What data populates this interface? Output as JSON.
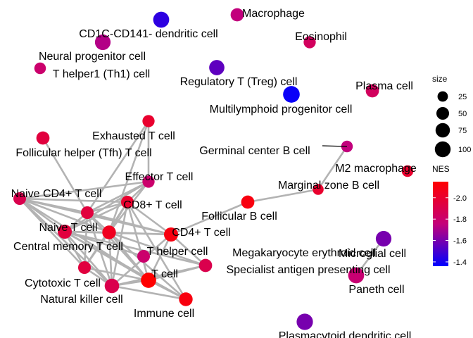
{
  "chart_data": {
    "type": "network",
    "description_source": "cell-type enrichment network (node size = gene set size, color = NES)",
    "nodes": [
      {
        "id": "Macrophage",
        "label": "Macrophage",
        "size": 40,
        "nes": -1.75
      },
      {
        "id": "DC",
        "label": "CD1C-CD141- dendritic cell",
        "size": 75,
        "nes": -1.45
      },
      {
        "id": "Eosinophil",
        "label": "Eosinophil",
        "size": 30,
        "nes": -1.85
      },
      {
        "id": "NeuralProg",
        "label": "Neural progenitor cell",
        "size": 70,
        "nes": -1.72
      },
      {
        "id": "Th1",
        "label": "T helper1 (Th1) cell",
        "size": 25,
        "nes": -1.8
      },
      {
        "id": "Treg",
        "label": "Regulatory T (Treg) cell",
        "size": 65,
        "nes": -1.55
      },
      {
        "id": "PlasmaCell",
        "label": "Plasma cell",
        "size": 40,
        "nes": -1.85
      },
      {
        "id": "MLP",
        "label": "Multilymphoid progenitor cell",
        "size": 85,
        "nes": -1.38
      },
      {
        "id": "Exhausted",
        "label": "Exhausted T cell",
        "size": 30,
        "nes": -2.0
      },
      {
        "id": "Tfh",
        "label": "Follicular helper (Tfh) T cell",
        "size": 40,
        "nes": -1.95
      },
      {
        "id": "GCB",
        "label": "Germinal center B cell",
        "size": 25,
        "nes": -1.75
      },
      {
        "id": "M2",
        "label": "M2 macrophage",
        "size": 25,
        "nes": -2.0
      },
      {
        "id": "Effector",
        "label": "Effector T cell",
        "size": 30,
        "nes": -1.8
      },
      {
        "id": "NaiveCD4",
        "label": "Naive CD4+ T cell",
        "size": 35,
        "nes": -1.9
      },
      {
        "id": "MZB",
        "label": "Marginal zone B cell",
        "size": 20,
        "nes": -2.0
      },
      {
        "id": "CD8",
        "label": "CD8+ T cell",
        "size": 35,
        "nes": -2.0
      },
      {
        "id": "FolB",
        "label": "Follicular B cell",
        "size": 40,
        "nes": -2.1
      },
      {
        "id": "NaiveT",
        "label": "Naive T cell",
        "size": 35,
        "nes": -1.95
      },
      {
        "id": "CD4",
        "label": "CD4+ T cell",
        "size": 50,
        "nes": -2.1
      },
      {
        "id": "CentralMem",
        "label": "Central memory T cell",
        "size": 45,
        "nes": -2.05
      },
      {
        "id": "Microglial",
        "label": "Microglial cell",
        "size": 70,
        "nes": -1.6
      },
      {
        "id": "Th",
        "label": "T helper cell",
        "size": 50,
        "nes": -1.95
      },
      {
        "id": "MegaEry",
        "label": "Megakaryocyte erythroid cell",
        "size": 35,
        "nes": -1.8
      },
      {
        "id": "SpecialistAPC",
        "label": "Specialist antigen presenting cell",
        "size": 40,
        "nes": -1.9
      },
      {
        "id": "Cytotoxic",
        "label": "Cytotoxic T cell",
        "size": 35,
        "nes": -1.95
      },
      {
        "id": "Tcell",
        "label": "T cell",
        "size": 65,
        "nes": -2.15
      },
      {
        "id": "Paneth",
        "label": "Paneth cell",
        "size": 75,
        "nes": -1.78
      },
      {
        "id": "NK",
        "label": "Natural killer cell",
        "size": 55,
        "nes": -1.9
      },
      {
        "id": "Immune",
        "label": "Immune cell",
        "size": 45,
        "nes": -2.1
      },
      {
        "id": "Plasmacytoid",
        "label": "Plasmacytoid dendritic cell",
        "size": 80,
        "nes": -1.6
      }
    ],
    "edges": [
      [
        "GCB",
        "MZB"
      ],
      [
        "MZB",
        "FolB"
      ],
      [
        "FolB",
        "CD4"
      ],
      [
        "Exhausted",
        "Effector"
      ],
      [
        "Exhausted",
        "NaiveT"
      ],
      [
        "Exhausted",
        "CentralMem"
      ],
      [
        "Tfh",
        "NaiveT"
      ],
      [
        "Effector",
        "NaiveCD4"
      ],
      [
        "Effector",
        "CD8"
      ],
      [
        "Effector",
        "NaiveT"
      ],
      [
        "Effector",
        "CentralMem"
      ],
      [
        "Effector",
        "Th"
      ],
      [
        "NaiveCD4",
        "NaiveT"
      ],
      [
        "NaiveCD4",
        "CentralMem"
      ],
      [
        "NaiveCD4",
        "CD8"
      ],
      [
        "NaiveCD4",
        "Th"
      ],
      [
        "NaiveCD4",
        "Cytotoxic"
      ],
      [
        "NaiveCD4",
        "NK"
      ],
      [
        "NaiveCD4",
        "Tcell"
      ],
      [
        "NaiveCD4",
        "CD4"
      ],
      [
        "CD8",
        "NaiveT"
      ],
      [
        "CD8",
        "CentralMem"
      ],
      [
        "CD8",
        "Th"
      ],
      [
        "CD8",
        "CD4"
      ],
      [
        "CD8",
        "Tcell"
      ],
      [
        "CD8",
        "Cytotoxic"
      ],
      [
        "CD8",
        "NK"
      ],
      [
        "CD8",
        "Immune"
      ],
      [
        "NaiveT",
        "CentralMem"
      ],
      [
        "NaiveT",
        "Th"
      ],
      [
        "NaiveT",
        "Cytotoxic"
      ],
      [
        "NaiveT",
        "NK"
      ],
      [
        "NaiveT",
        "Tcell"
      ],
      [
        "NaiveT",
        "CD4"
      ],
      [
        "CentralMem",
        "Th"
      ],
      [
        "CentralMem",
        "CD4"
      ],
      [
        "CentralMem",
        "Cytotoxic"
      ],
      [
        "CentralMem",
        "NK"
      ],
      [
        "CentralMem",
        "Tcell"
      ],
      [
        "CentralMem",
        "SpecialistAPC"
      ],
      [
        "CentralMem",
        "Immune"
      ],
      [
        "CD4",
        "Th"
      ],
      [
        "CD4",
        "Tcell"
      ],
      [
        "CD4",
        "SpecialistAPC"
      ],
      [
        "CD4",
        "NK"
      ],
      [
        "Th",
        "Tcell"
      ],
      [
        "Th",
        "NK"
      ],
      [
        "Th",
        "Cytotoxic"
      ],
      [
        "Th",
        "SpecialistAPC"
      ],
      [
        "Th",
        "MegaEry"
      ],
      [
        "Th",
        "Immune"
      ],
      [
        "Tcell",
        "NK"
      ],
      [
        "Tcell",
        "SpecialistAPC"
      ],
      [
        "Tcell",
        "Immune"
      ],
      [
        "Tcell",
        "Cytotoxic"
      ],
      [
        "Cytotoxic",
        "NK"
      ],
      [
        "NK",
        "SpecialistAPC"
      ],
      [
        "NK",
        "Immune"
      ],
      [
        "Microglial",
        "Paneth"
      ]
    ],
    "legend": {
      "size_title": "size",
      "size_breaks": [
        25,
        50,
        75,
        100
      ],
      "color_title": "NES",
      "color_breaks": [
        -2.0,
        -1.8,
        -1.6,
        -1.4
      ],
      "color_range": [
        -2.15,
        -1.36
      ],
      "color_low": "#ff0000",
      "color_high": "#0000ff",
      "position": "right"
    }
  }
}
